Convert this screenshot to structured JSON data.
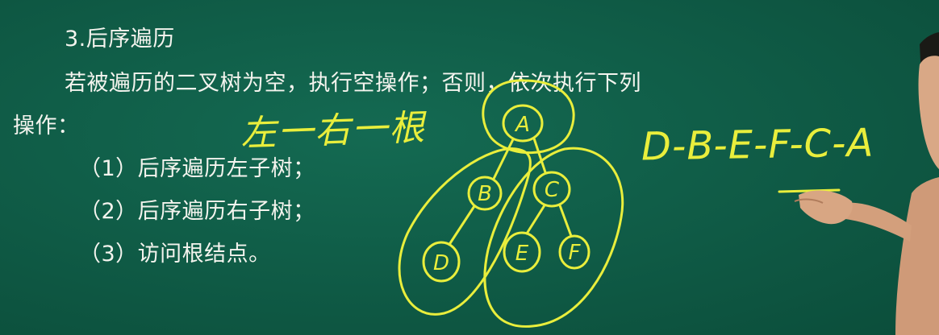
{
  "board": {
    "title": "3.后序遍历",
    "description_line1": "若被遍历的二叉树为空，执行空操作；否则，依次执行下列",
    "description_line2": "操作：",
    "steps": [
      "（1）后序遍历左子树；",
      "（2）后序遍历右子树；",
      "（3）访问根结点。"
    ]
  },
  "handwriting": {
    "order_rule": "左一右一根",
    "traversal_sequence": "D-B-E-F-C-A"
  },
  "tree": {
    "nodes": [
      "A",
      "B",
      "C",
      "D",
      "E",
      "F"
    ]
  },
  "colors": {
    "chalkboard": "#0f5a45",
    "chalk_yellow": "#e9ee3c",
    "printed_text": "#f4f4ee"
  }
}
